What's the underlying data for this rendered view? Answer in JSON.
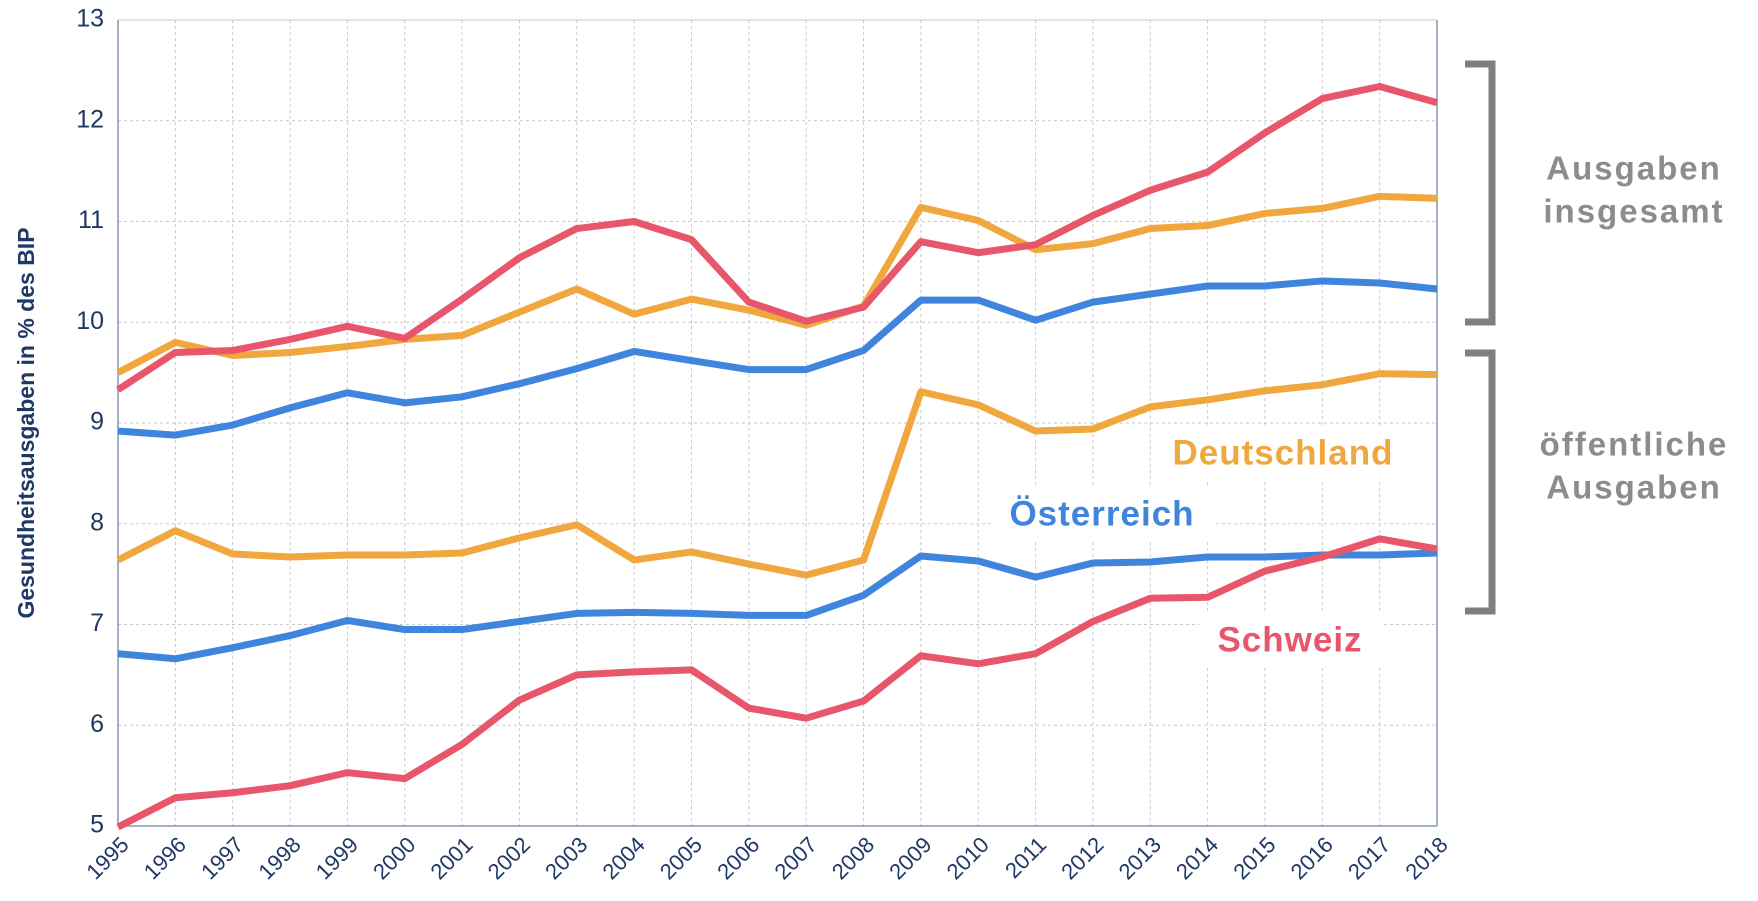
{
  "chart_data": {
    "type": "line",
    "y_label": "Gesundheitsausgaben in % des BIP",
    "categories": [
      "1995",
      "1996",
      "1997",
      "1998",
      "1999",
      "2000",
      "2001",
      "2002",
      "2003",
      "2004",
      "2005",
      "2006",
      "2007",
      "2008",
      "2009",
      "2010",
      "2011",
      "2012",
      "2013",
      "2014",
      "2015",
      "2016",
      "2017",
      "2018"
    ],
    "groups": {
      "total": "Ausgaben insgesamt",
      "public": "öffentliche Ausgaben"
    },
    "series": [
      {
        "name": "Deutschland",
        "color": "#f0a73d",
        "total": [
          9.5,
          9.8,
          9.67,
          9.7,
          9.76,
          9.83,
          9.87,
          10.1,
          10.33,
          10.08,
          10.23,
          10.12,
          9.97,
          10.16,
          11.14,
          11.01,
          10.72,
          10.78,
          10.93,
          10.96,
          11.08,
          11.13,
          11.25,
          11.23
        ],
        "public": [
          7.64,
          7.93,
          7.7,
          7.67,
          7.69,
          7.69,
          7.71,
          7.86,
          7.99,
          7.64,
          7.72,
          7.6,
          7.49,
          7.64,
          9.31,
          9.18,
          8.92,
          8.94,
          9.16,
          9.23,
          9.32,
          9.38,
          9.49,
          9.48
        ]
      },
      {
        "name": "Österreich",
        "color": "#3f85de",
        "total": [
          8.92,
          8.88,
          8.98,
          9.15,
          9.3,
          9.2,
          9.26,
          9.39,
          9.54,
          9.71,
          9.62,
          9.53,
          9.53,
          9.72,
          10.22,
          10.22,
          10.02,
          10.2,
          10.28,
          10.36,
          10.36,
          10.41,
          10.39,
          10.33
        ],
        "public": [
          6.71,
          6.66,
          6.77,
          6.89,
          7.04,
          6.95,
          6.95,
          7.03,
          7.11,
          7.12,
          7.11,
          7.09,
          7.09,
          7.29,
          7.68,
          7.63,
          7.47,
          7.61,
          7.62,
          7.67,
          7.67,
          7.69,
          7.69,
          7.71
        ]
      },
      {
        "name": "Schweiz",
        "color": "#e8566b",
        "total": [
          9.33,
          9.7,
          9.72,
          9.83,
          9.96,
          9.84,
          10.23,
          10.64,
          10.93,
          11.0,
          10.82,
          10.2,
          10.01,
          10.15,
          10.8,
          10.69,
          10.77,
          11.06,
          11.31,
          11.49,
          11.88,
          12.22,
          12.34,
          12.18
        ],
        "public": [
          4.99,
          5.28,
          5.33,
          5.4,
          5.53,
          5.47,
          5.81,
          6.25,
          6.5,
          6.53,
          6.55,
          6.17,
          6.07,
          6.24,
          6.69,
          6.61,
          6.71,
          7.03,
          7.26,
          7.27,
          7.53,
          7.67,
          7.85,
          7.75
        ]
      }
    ],
    "ylim": [
      5,
      13
    ],
    "yticks": [
      5,
      6,
      7,
      8,
      9,
      10,
      11,
      12,
      13
    ],
    "grid": true
  }
}
